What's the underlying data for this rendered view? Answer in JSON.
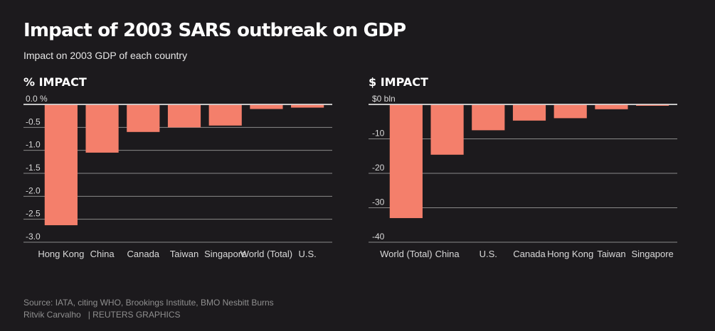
{
  "title": "Impact of 2003 SARS outbreak on GDP",
  "subtitle": "Impact on 2003 GDP of each country",
  "colors": {
    "background": "#1c1a1d",
    "bar": "#f47f6b",
    "text": "#ffffff",
    "muted": "#8f8f8f"
  },
  "chart_data": [
    {
      "type": "bar",
      "title": "% IMPACT",
      "categories": [
        "Hong Kong",
        "China",
        "Canada",
        "Taiwan",
        "Singapore",
        "World (Total)",
        "U.S."
      ],
      "values": [
        -2.63,
        -1.05,
        -0.6,
        -0.5,
        -0.46,
        -0.1,
        -0.07
      ],
      "ylim": [
        -3.0,
        0
      ],
      "yticks": [
        0,
        -0.5,
        -1.0,
        -1.5,
        -2.0,
        -2.5,
        -3.0
      ],
      "ytick_labels": [
        "0.0 %",
        "-0.5",
        "-1.0",
        "-1.5",
        "-2.0",
        "-2.5",
        "-3.0"
      ],
      "xlabel": "",
      "ylabel": ""
    },
    {
      "type": "bar",
      "title": "$ IMPACT",
      "categories": [
        "World (Total)",
        "China",
        "U.S.",
        "Canada",
        "Hong Kong",
        "Taiwan",
        "Singapore"
      ],
      "values": [
        -33,
        -14.6,
        -7.5,
        -4.7,
        -4,
        -1.4,
        -0.4
      ],
      "ylim": [
        -40,
        0
      ],
      "yticks": [
        0,
        -10,
        -20,
        -30,
        -40
      ],
      "ytick_labels": [
        "$0 bln",
        "-10",
        "-20",
        "-30",
        "-40"
      ],
      "xlabel": "",
      "ylabel": ""
    }
  ],
  "footer": {
    "source": "Source: IATA, citing WHO, Brookings Institute, BMO Nesbitt Burns",
    "author": "Ritvik Carvalho",
    "agency": "| REUTERS GRAPHICS"
  }
}
